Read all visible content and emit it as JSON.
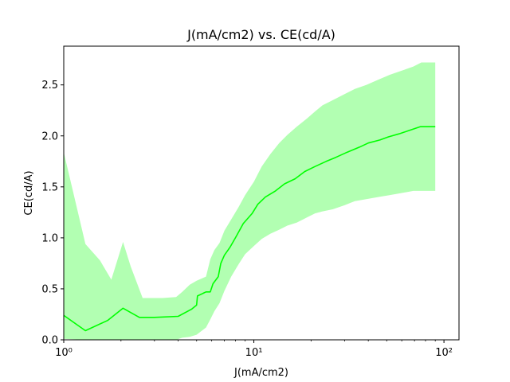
{
  "chart_data": {
    "type": "line",
    "title": "J(mA/cm2) vs. CE(cd/A)",
    "xlabel": "J(mA/cm2)",
    "ylabel": "CE(cd/A)",
    "xscale": "log",
    "xlim": [
      1,
      120
    ],
    "ylim": [
      0,
      2.88
    ],
    "xticks": [
      {
        "value": 1,
        "label": "10⁰"
      },
      {
        "value": 10,
        "label": "10¹"
      },
      {
        "value": 100,
        "label": "10²"
      }
    ],
    "yticks": [
      {
        "value": 0,
        "label": "0.0"
      },
      {
        "value": 0.5,
        "label": "0.5"
      },
      {
        "value": 1.0,
        "label": "1.0"
      },
      {
        "value": 1.5,
        "label": "1.5"
      },
      {
        "value": 2.0,
        "label": "2.0"
      },
      {
        "value": 2.5,
        "label": "2.5"
      }
    ],
    "grid": false,
    "legend": "none",
    "colors": {
      "line": "#00ff00",
      "band": "#00ff00",
      "band_opacity": 0.3
    },
    "series": [
      {
        "type": "line",
        "x": [
          1.0,
          1.3,
          1.7,
          2.05,
          2.5,
          3.0,
          4.0,
          4.7,
          5.0,
          5.05,
          5.6,
          5.9,
          6.1,
          6.5,
          6.7,
          7.0,
          7.5,
          8.0,
          8.8,
          9.8,
          10.5,
          11.5,
          13.0,
          14.5,
          16.5,
          18.5,
          21.0,
          24.0,
          27.0,
          31.0,
          36.0,
          40.0,
          46.0,
          51.0,
          58.0,
          65.0,
          75.0,
          90.0
        ],
        "y": [
          0.24,
          0.09,
          0.19,
          0.31,
          0.22,
          0.22,
          0.23,
          0.3,
          0.34,
          0.43,
          0.47,
          0.47,
          0.55,
          0.62,
          0.75,
          0.83,
          0.91,
          1.0,
          1.14,
          1.24,
          1.33,
          1.4,
          1.46,
          1.53,
          1.58,
          1.65,
          1.7,
          1.75,
          1.79,
          1.84,
          1.89,
          1.93,
          1.96,
          1.99,
          2.02,
          2.05,
          2.09,
          2.09
        ]
      },
      {
        "type": "band",
        "x": [
          1.0,
          1.3,
          1.55,
          1.78,
          2.05,
          2.25,
          2.6,
          3.3,
          3.9,
          4.2,
          4.6,
          5.0,
          5.6,
          5.9,
          6.2,
          6.6,
          7.0,
          7.6,
          8.3,
          9.0,
          10.0,
          11.0,
          12.2,
          13.6,
          15.0,
          16.8,
          19.0,
          21.0,
          23.0,
          26.0,
          30.0,
          34.0,
          39.0,
          45.0,
          52.0,
          60.0,
          69.0,
          76.0,
          90.0
        ],
        "upper": [
          1.84,
          0.94,
          0.78,
          0.59,
          0.96,
          0.72,
          0.41,
          0.41,
          0.42,
          0.47,
          0.54,
          0.58,
          0.62,
          0.79,
          0.88,
          0.95,
          1.07,
          1.18,
          1.3,
          1.42,
          1.55,
          1.7,
          1.82,
          1.93,
          2.01,
          2.09,
          2.17,
          2.24,
          2.3,
          2.35,
          2.41,
          2.46,
          2.5,
          2.55,
          2.6,
          2.64,
          2.68,
          2.72,
          2.72
        ],
        "lower": [
          0.01,
          0.0,
          0.0,
          0.0,
          0.0,
          0.0,
          0.0,
          0.0,
          0.0,
          0.02,
          0.03,
          0.05,
          0.12,
          0.2,
          0.28,
          0.36,
          0.48,
          0.62,
          0.74,
          0.84,
          0.92,
          0.99,
          1.04,
          1.08,
          1.12,
          1.15,
          1.2,
          1.24,
          1.26,
          1.28,
          1.32,
          1.36,
          1.38,
          1.4,
          1.42,
          1.44,
          1.46,
          1.46,
          1.46
        ]
      }
    ]
  }
}
